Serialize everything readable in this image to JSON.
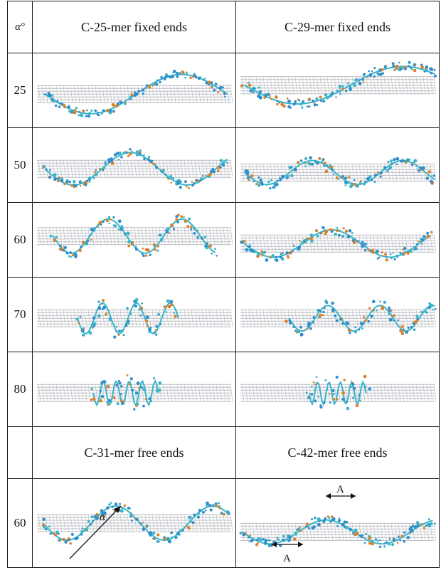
{
  "header": {
    "angle_col": "α°",
    "col1": "C-25-mer fixed ends",
    "col2": "C-29-mer fixed ends"
  },
  "rows": [
    {
      "angle": "25"
    },
    {
      "angle": "50"
    },
    {
      "angle": "60"
    },
    {
      "angle": "70"
    },
    {
      "angle": "80"
    }
  ],
  "header2": {
    "angle_col": "",
    "col1": "C-31-mer free ends",
    "col2": "C-42-mer free ends"
  },
  "last_row": {
    "angle": "60",
    "alpha_symbol": "α",
    "arrow_label_top": "A",
    "arrow_label_bottom": "A"
  },
  "colors": {
    "tube": "#b9bcc2",
    "dna_blue": "#2f8fc9",
    "dna_cyan": "#39b4c9",
    "dna_orange": "#d9822b"
  }
}
